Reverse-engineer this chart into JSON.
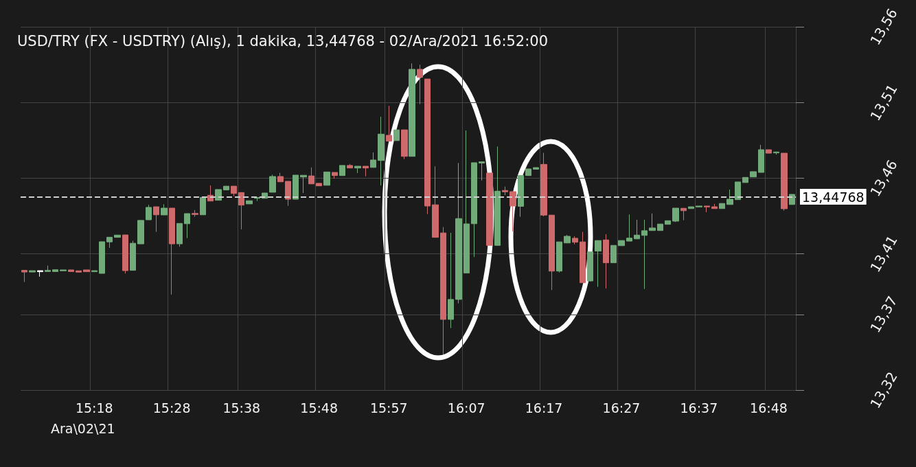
{
  "chart_data": {
    "type": "candlestick",
    "title": "USD/TRY (FX - USDTRY) (Alış), 1 dakika, 13,44768 - 02/Ara/2021 16:52:00",
    "annotations": [
      "Ara\\02\\21"
    ],
    "categories": [
      null,
      null,
      null,
      null,
      null,
      null,
      null,
      null,
      null,
      "15:18",
      null,
      null,
      null,
      null,
      null,
      null,
      null,
      null,
      null,
      "15:28",
      null,
      null,
      null,
      null,
      null,
      null,
      null,
      null,
      "15:38",
      null,
      null,
      null,
      null,
      null,
      null,
      null,
      null,
      null,
      "15:48",
      null,
      null,
      null,
      null,
      null,
      null,
      null,
      null,
      "15:57",
      null,
      null,
      null,
      null,
      null,
      null,
      null,
      null,
      null,
      "16:07",
      null,
      null,
      null,
      null,
      null,
      null,
      null,
      null,
      null,
      "16:17",
      null,
      null,
      null,
      null,
      null,
      null,
      null,
      null,
      null,
      "16:27",
      null,
      null,
      null,
      null,
      null,
      null,
      null,
      null,
      null,
      "16:37",
      null,
      null,
      null,
      null,
      null,
      null,
      null,
      null,
      "16:48",
      null,
      null,
      null
    ],
    "ohlc": [
      [
        13.3991,
        13.3991,
        13.3914,
        13.398
      ],
      [
        13.398,
        13.3989,
        13.398,
        13.3989
      ],
      [
        13.3982,
        13.3989,
        13.3949,
        13.3989
      ],
      [
        13.3983,
        13.4022,
        13.3983,
        13.3991
      ],
      [
        13.3983,
        13.3995,
        13.3983,
        13.3995
      ],
      [
        13.3988,
        13.3994,
        13.3988,
        13.3994
      ],
      [
        13.3994,
        13.3994,
        13.3983,
        13.3983
      ],
      [
        13.3988,
        13.3988,
        13.3979,
        13.3979
      ],
      [
        13.3994,
        13.3994,
        13.3982,
        13.3982
      ],
      [
        13.3982,
        13.3989,
        13.3982,
        13.3989
      ],
      [
        13.3971,
        13.418,
        13.3971,
        13.418
      ],
      [
        13.4179,
        13.421,
        13.414,
        13.421
      ],
      [
        13.4209,
        13.4224,
        13.4209,
        13.4224
      ],
      [
        13.4225,
        13.4225,
        13.397,
        13.3989
      ],
      [
        13.3991,
        13.4186,
        13.3991,
        13.417
      ],
      [
        13.4166,
        13.4321,
        13.4166,
        13.4321
      ],
      [
        13.4325,
        13.4424,
        13.4325,
        13.4407
      ],
      [
        13.4411,
        13.4411,
        13.4245,
        13.4358
      ],
      [
        13.4357,
        13.4428,
        13.4357,
        13.4402
      ],
      [
        13.4402,
        13.4402,
        13.3831,
        13.4166
      ],
      [
        13.4166,
        13.4301,
        13.4147,
        13.4301
      ],
      [
        13.4299,
        13.4366,
        13.4204,
        13.4366
      ],
      [
        13.4367,
        13.4389,
        13.4345,
        13.436
      ],
      [
        13.4358,
        13.4473,
        13.4358,
        13.4473
      ],
      [
        13.4487,
        13.4552,
        13.4449,
        13.4449
      ],
      [
        13.4454,
        13.4525,
        13.4454,
        13.4525
      ],
      [
        13.4522,
        13.4547,
        13.4522,
        13.4547
      ],
      [
        13.4547,
        13.4547,
        13.4481,
        13.4499
      ],
      [
        13.4505,
        13.4505,
        13.4262,
        13.4422
      ],
      [
        13.443,
        13.4451,
        13.443,
        13.4451
      ],
      [
        13.4467,
        13.4473,
        13.4449,
        13.4473
      ],
      [
        13.4467,
        13.4502,
        13.4467,
        13.4502
      ],
      [
        13.4507,
        13.4623,
        13.4507,
        13.4611
      ],
      [
        13.4611,
        13.4635,
        13.4576,
        13.4576
      ],
      [
        13.4579,
        13.4579,
        13.4417,
        13.4461
      ],
      [
        13.4461,
        13.462,
        13.4461,
        13.462
      ],
      [
        13.4608,
        13.4619,
        13.4502,
        13.4619
      ],
      [
        13.4615,
        13.4671,
        13.4562,
        13.4562
      ],
      [
        13.4566,
        13.4566,
        13.4549,
        13.4549
      ],
      [
        13.4553,
        13.4641,
        13.4553,
        13.4641
      ],
      [
        13.4638,
        13.4638,
        13.4597,
        13.4617
      ],
      [
        13.4617,
        13.4684,
        13.4617,
        13.4684
      ],
      [
        13.4684,
        13.4693,
        13.4667,
        13.4667
      ],
      [
        13.4667,
        13.4679,
        13.4634,
        13.4679
      ],
      [
        13.4679,
        13.4679,
        13.4612,
        13.4667
      ],
      [
        13.4671,
        13.477,
        13.4671,
        13.472
      ],
      [
        13.4717,
        13.5006,
        13.4552,
        13.4891
      ],
      [
        13.4883,
        13.5078,
        13.4845,
        13.4845
      ],
      [
        13.4848,
        13.4919,
        13.4848,
        13.4919
      ],
      [
        13.4919,
        13.4919,
        13.4726,
        13.4744
      ],
      [
        13.4744,
        13.5358,
        13.4744,
        13.5319
      ],
      [
        13.5319,
        13.5349,
        13.5089,
        13.5266
      ],
      [
        13.5255,
        13.5255,
        13.4363,
        13.4416
      ],
      [
        13.4424,
        13.4678,
        13.4209,
        13.4209
      ],
      [
        13.4238,
        13.4277,
        13.3436,
        13.3667
      ],
      [
        13.3667,
        13.4239,
        13.361,
        13.3799
      ],
      [
        13.3799,
        13.47,
        13.3773,
        13.4333
      ],
      [
        13.3973,
        13.4915,
        13.3973,
        13.4298
      ],
      [
        13.4299,
        13.4702,
        13.4079,
        13.4702
      ],
      [
        13.47,
        13.4708,
        13.4585,
        13.4708
      ],
      [
        13.4634,
        13.4634,
        13.4156,
        13.4156
      ],
      [
        13.4156,
        13.4809,
        13.4156,
        13.4514
      ],
      [
        13.4519,
        13.4544,
        13.4488,
        13.451
      ],
      [
        13.4511,
        13.4511,
        13.4248,
        13.4416
      ],
      [
        13.4414,
        13.4618,
        13.4345,
        13.4618
      ],
      [
        13.4617,
        13.4661,
        13.4617,
        13.4661
      ],
      [
        13.4659,
        13.467,
        13.4659,
        13.467
      ],
      [
        13.4691,
        13.4767,
        13.4348,
        13.4356
      ],
      [
        13.4356,
        13.4356,
        13.3861,
        13.3986
      ],
      [
        13.3986,
        13.4179,
        13.3977,
        13.4179
      ],
      [
        13.4172,
        13.4225,
        13.4172,
        13.4216
      ],
      [
        13.4203,
        13.4216,
        13.4163,
        13.4177
      ],
      [
        13.4179,
        13.4245,
        13.3909,
        13.3909
      ],
      [
        13.3921,
        13.4113,
        13.3917,
        13.4113
      ],
      [
        13.4118,
        13.4188,
        13.3882,
        13.4188
      ],
      [
        13.4192,
        13.423,
        13.3871,
        13.4041
      ],
      [
        13.4041,
        13.4156,
        13.4041,
        13.4156
      ],
      [
        13.4154,
        13.4188,
        13.4154,
        13.4188
      ],
      [
        13.4184,
        13.436,
        13.4184,
        13.4204
      ],
      [
        13.4199,
        13.4325,
        13.4199,
        13.4224
      ],
      [
        13.4222,
        13.4325,
        13.3868,
        13.4253
      ],
      [
        13.4254,
        13.4367,
        13.4254,
        13.4271
      ],
      [
        13.4254,
        13.4297,
        13.4254,
        13.4297
      ],
      [
        13.4295,
        13.4319,
        13.4295,
        13.4319
      ],
      [
        13.4316,
        13.4402,
        13.431,
        13.4402
      ],
      [
        13.4401,
        13.4401,
        13.4322,
        13.4385
      ],
      [
        13.4399,
        13.4411,
        13.4399,
        13.4411
      ],
      [
        13.441,
        13.4416,
        13.441,
        13.4416
      ],
      [
        13.4416,
        13.4416,
        13.4375,
        13.441
      ],
      [
        13.4411,
        13.443,
        13.4399,
        13.4399
      ],
      [
        13.4399,
        13.4433,
        13.4399,
        13.4433
      ],
      [
        13.4426,
        13.4525,
        13.4426,
        13.4461
      ],
      [
        13.4458,
        13.4575,
        13.4458,
        13.4575
      ],
      [
        13.4571,
        13.4605,
        13.4571,
        13.4605
      ],
      [
        13.4608,
        13.4643,
        13.4608,
        13.4643
      ],
      [
        13.4638,
        13.482,
        13.4638,
        13.4788
      ],
      [
        13.4788,
        13.4788,
        13.4765,
        13.4765
      ],
      [
        13.4767,
        13.4773,
        13.4756,
        13.4773
      ],
      [
        13.4765,
        13.4765,
        13.4385,
        13.4398
      ],
      [
        13.4426,
        13.4493,
        13.4426,
        13.4493
      ]
    ],
    "colors": [
      "#cf6a6c",
      "#72ab7a",
      "#ffffff",
      "#72ab7a",
      "#72ab7a",
      "#72ab7a",
      "#cf6a6c",
      "#cf6a6c",
      "#cf6a6c",
      "#72ab7a",
      "#72ab7a",
      "#72ab7a",
      "#72ab7a",
      "#cf6a6c",
      "#72ab7a",
      "#72ab7a",
      "#72ab7a",
      "#cf6a6c",
      "#72ab7a",
      "#cf6a6c",
      "#72ab7a",
      "#72ab7a",
      "#cf6a6c",
      "#72ab7a",
      "#cf6a6c",
      "#72ab7a",
      "#72ab7a",
      "#cf6a6c",
      "#cf6a6c",
      "#72ab7a",
      "#72ab7a",
      "#72ab7a",
      "#72ab7a",
      "#cf6a6c",
      "#cf6a6c",
      "#72ab7a",
      "#72ab7a",
      "#cf6a6c",
      "#cf6a6c",
      "#72ab7a",
      "#cf6a6c",
      "#72ab7a",
      "#cf6a6c",
      "#72ab7a",
      "#cf6a6c",
      "#72ab7a",
      "#72ab7a",
      "#cf6a6c",
      "#72ab7a",
      "#cf6a6c",
      "#72ab7a",
      "#cf6a6c",
      "#cf6a6c",
      "#cf6a6c",
      "#cf6a6c",
      "#72ab7a",
      "#72ab7a",
      "#72ab7a",
      "#72ab7a",
      "#72ab7a",
      "#cf6a6c",
      "#72ab7a",
      "#cf6a6c",
      "#cf6a6c",
      "#72ab7a",
      "#72ab7a",
      "#72ab7a",
      "#cf6a6c",
      "#cf6a6c",
      "#72ab7a",
      "#72ab7a",
      "#cf6a6c",
      "#cf6a6c",
      "#72ab7a",
      "#72ab7a",
      "#cf6a6c",
      "#72ab7a",
      "#72ab7a",
      "#72ab7a",
      "#72ab7a",
      "#72ab7a",
      "#72ab7a",
      "#72ab7a",
      "#72ab7a",
      "#72ab7a",
      "#cf6a6c",
      "#72ab7a",
      "#72ab7a",
      "#cf6a6c",
      "#cf6a6c",
      "#72ab7a",
      "#72ab7a",
      "#72ab7a",
      "#72ab7a",
      "#72ab7a",
      "#72ab7a",
      "#cf6a6c",
      "#72ab7a",
      "#cf6a6c",
      "#72ab7a"
    ],
    "ylim": [
      13.32,
      13.56
    ],
    "yticks": [
      {
        "value": 13.32,
        "label": "13,32"
      },
      {
        "value": 13.37,
        "label": "13,37"
      },
      {
        "value": 13.41,
        "label": "13,41"
      },
      {
        "value": 13.46,
        "label": "13,46"
      },
      {
        "value": 13.51,
        "label": "13,51"
      },
      {
        "value": 13.56,
        "label": "13,56"
      }
    ],
    "grid": true,
    "ref_lines": [
      {
        "axis": "y",
        "value": 13.44768,
        "label": "13,44768",
        "color": "#cfcfcf",
        "line_style": "dashed"
      }
    ]
  }
}
